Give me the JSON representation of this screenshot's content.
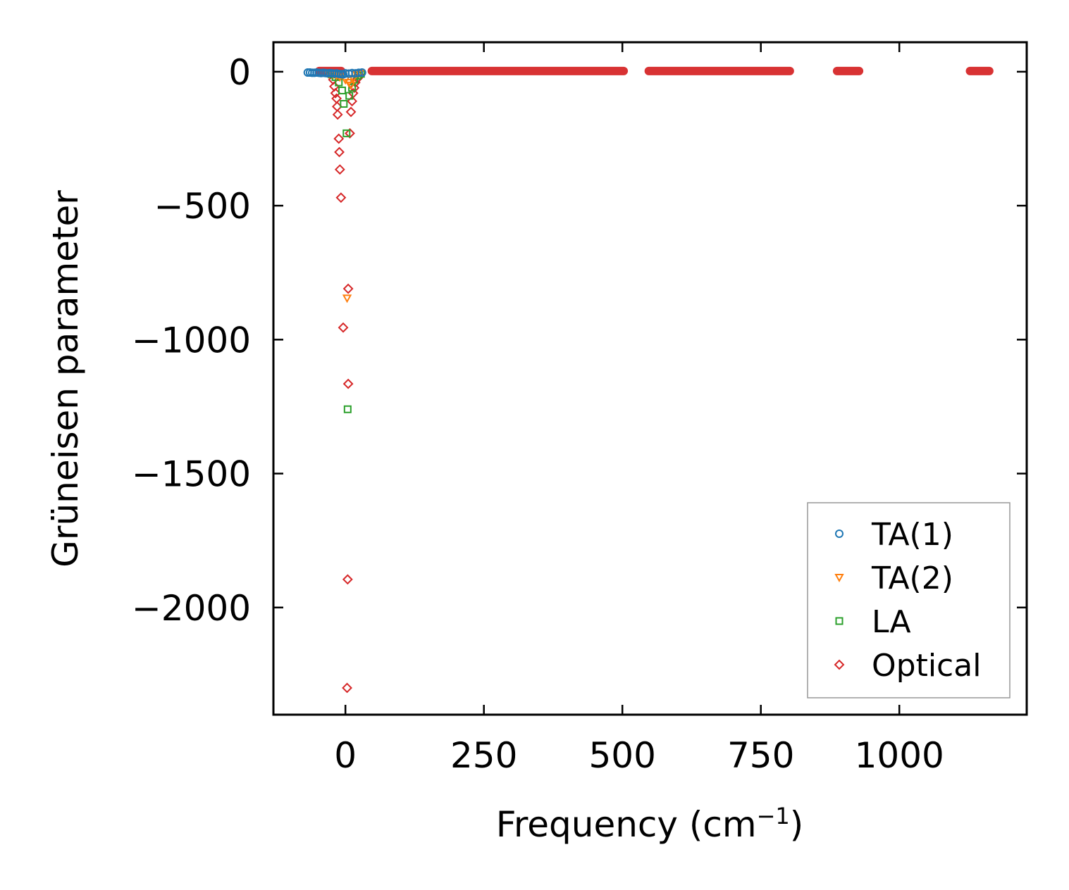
{
  "chart_data": {
    "type": "scatter",
    "xlabel": "Frequency (cm",
    "xlabel_sup": "−1",
    "xlabel_suffix": ")",
    "ylabel": "Grüneisen parameter",
    "xlim": [
      -130,
      1230
    ],
    "ylim": [
      -2400,
      110
    ],
    "x_ticks": [
      {
        "value": 0,
        "label": "0"
      },
      {
        "value": 250,
        "label": "250"
      },
      {
        "value": 500,
        "label": "500"
      },
      {
        "value": 750,
        "label": "750"
      },
      {
        "value": 1000,
        "label": "1000"
      }
    ],
    "y_ticks": [
      {
        "value": 0,
        "label": "0"
      },
      {
        "value": -500,
        "label": "−500"
      },
      {
        "value": -1000,
        "label": "−1000"
      },
      {
        "value": -1500,
        "label": "−1500"
      },
      {
        "value": -2000,
        "label": "−2000"
      }
    ],
    "legend_position": "lower-right",
    "series": [
      {
        "name": "TA(1)",
        "marker": "circle",
        "color": "#1f77b4",
        "points": [
          [
            -68,
            -3
          ],
          [
            -64,
            -3
          ],
          [
            -60,
            -4
          ],
          [
            -56,
            -4
          ],
          [
            -52,
            -3
          ],
          [
            -48,
            -4
          ],
          [
            -44,
            -5
          ],
          [
            -40,
            -4
          ],
          [
            -36,
            -5
          ],
          [
            -32,
            -6
          ],
          [
            -28,
            -5
          ],
          [
            -24,
            -6
          ],
          [
            -20,
            -7
          ],
          [
            -16,
            -6
          ],
          [
            -12,
            -8
          ],
          [
            -8,
            -9
          ],
          [
            -4,
            -10
          ],
          [
            0,
            -6
          ],
          [
            6,
            -7
          ],
          [
            12,
            -5
          ],
          [
            18,
            -6
          ],
          [
            24,
            -4
          ],
          [
            30,
            -3
          ]
        ]
      },
      {
        "name": "TA(2)",
        "marker": "triangle-down",
        "color": "#ff7f0e",
        "points": [
          [
            -30,
            -8
          ],
          [
            -22,
            -10
          ],
          [
            -16,
            -15
          ],
          [
            -10,
            -20
          ],
          [
            -5,
            -12
          ],
          [
            0,
            -30
          ],
          [
            3,
            -845
          ],
          [
            6,
            -40
          ],
          [
            10,
            -50
          ],
          [
            14,
            -25
          ],
          [
            20,
            -8
          ],
          [
            26,
            -5
          ]
        ]
      },
      {
        "name": "LA",
        "marker": "square",
        "color": "#2ca02c",
        "points": [
          [
            -25,
            -10
          ],
          [
            -18,
            -20
          ],
          [
            -12,
            -40
          ],
          [
            -6,
            -70
          ],
          [
            -3,
            -120
          ],
          [
            2,
            -230
          ],
          [
            4,
            -1260
          ],
          [
            7,
            -90
          ],
          [
            12,
            -60
          ],
          [
            16,
            -30
          ],
          [
            22,
            -15
          ],
          [
            28,
            -8
          ]
        ]
      },
      {
        "name": "Optical",
        "marker": "diamond",
        "color": "#d62728",
        "bands": [
          [
            -55,
            0
          ],
          [
            40,
            510
          ],
          [
            540,
            810
          ],
          [
            880,
            935
          ],
          [
            1120,
            1170
          ]
        ],
        "points": [
          [
            -22,
            -30
          ],
          [
            -20,
            -55
          ],
          [
            -18,
            -80
          ],
          [
            -16,
            -100
          ],
          [
            -15,
            -130
          ],
          [
            -14,
            -160
          ],
          [
            -12,
            -250
          ],
          [
            -11,
            -300
          ],
          [
            -10,
            -365
          ],
          [
            -8,
            -470
          ],
          [
            -4,
            -955
          ],
          [
            3,
            -2300
          ],
          [
            4,
            -1895
          ],
          [
            5,
            -1165
          ],
          [
            5,
            -810
          ],
          [
            8,
            -230
          ],
          [
            10,
            -150
          ],
          [
            12,
            -110
          ],
          [
            14,
            -80
          ],
          [
            16,
            -60
          ],
          [
            18,
            -40
          ],
          [
            22,
            -25
          ],
          [
            26,
            -15
          ]
        ]
      }
    ]
  }
}
